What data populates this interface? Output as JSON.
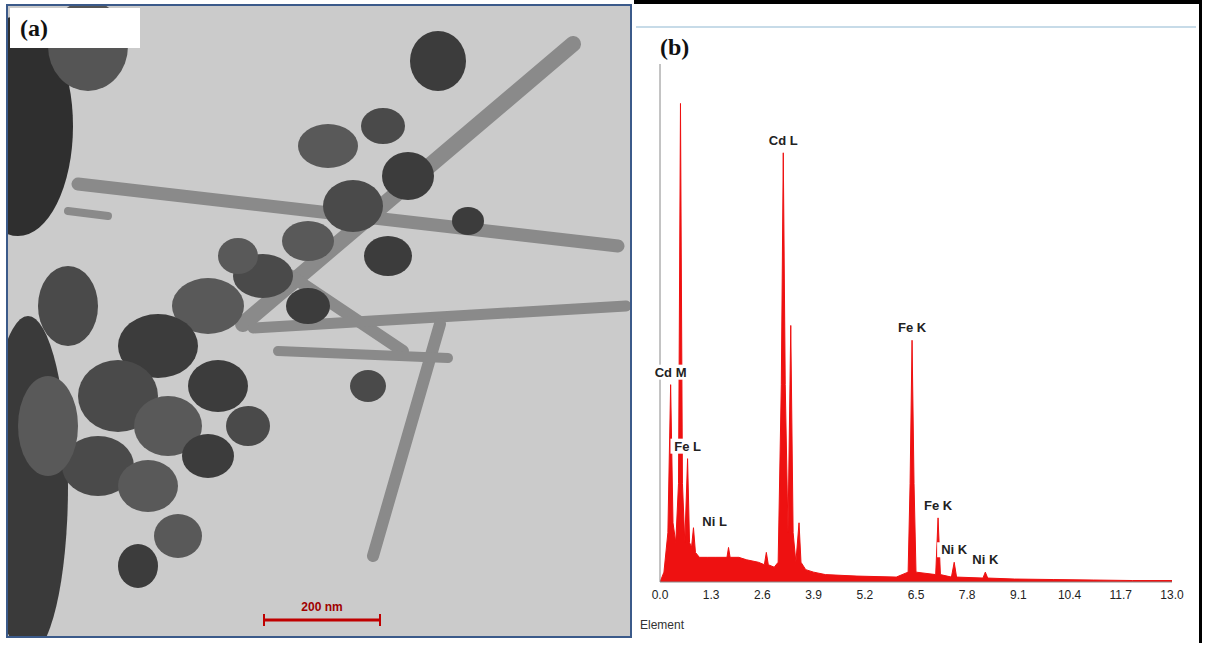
{
  "panel_a": {
    "label": "(a)",
    "scale_bar": "200 nm"
  },
  "chart_data": {
    "panel_label": "(b)",
    "type": "area",
    "xlabel": "Element",
    "color": "#ee1111",
    "tick_labels": "x",
    "grid": false,
    "xlim": [
      0,
      13
    ],
    "xticks": [
      {
        "value": 0,
        "label": "0.0"
      },
      1.3,
      2.6,
      3.9,
      5.2,
      6.5,
      7.8,
      9.1,
      10.4,
      11.7,
      {
        "value": 13,
        "label": "13.0"
      }
    ],
    "ylim": [
      0,
      105
    ],
    "x": [
      0,
      0.1,
      0.2,
      0.27,
      0.33,
      0.4,
      0.47,
      0.52,
      0.57,
      0.63,
      0.7,
      0.75,
      0.8,
      0.85,
      0.9,
      1.0,
      1.2,
      1.4,
      1.6,
      1.7,
      1.74,
      1.78,
      2.0,
      2.2,
      2.5,
      2.65,
      2.7,
      2.75,
      2.9,
      3.0,
      3.08,
      3.13,
      3.18,
      3.25,
      3.32,
      3.38,
      3.45,
      3.53,
      3.58,
      3.7,
      3.9,
      4.2,
      5.0,
      6.0,
      6.3,
      6.35,
      6.4,
      6.45,
      6.5,
      7.0,
      7.06,
      7.12,
      7.4,
      7.47,
      7.53,
      8.2,
      8.26,
      8.32,
      9,
      10,
      11,
      12,
      13
    ],
    "values": [
      0,
      2,
      10,
      40,
      12,
      8,
      20,
      97,
      20,
      8,
      25,
      8,
      7,
      11,
      6,
      5,
      5,
      5,
      5,
      5,
      7,
      5,
      5,
      4.5,
      4,
      3.5,
      6,
      3.5,
      3,
      4,
      40,
      87,
      40,
      10,
      52,
      10,
      4,
      12,
      4,
      2.5,
      2,
      1.5,
      1.2,
      1,
      2,
      20,
      49,
      20,
      2,
      1.5,
      13,
      1.5,
      1,
      4,
      1,
      0.8,
      2,
      0.8,
      0.6,
      0.5,
      0.4,
      0.3,
      0.3
    ],
    "annotations": [
      {
        "text": "Cd M",
        "x": 0.27,
        "y": 40
      },
      {
        "text": "Fe L",
        "x": 0.7,
        "y": 25
      },
      {
        "text": "Ni L",
        "x": 0.85,
        "y": 11
      },
      {
        "text": "Cd L",
        "x": 3.13,
        "y": 87
      },
      {
        "text": "Fe K",
        "x": 6.4,
        "y": 49
      },
      {
        "text": "Fe K",
        "x": 7.06,
        "y": 13
      },
      {
        "text": "Ni K",
        "x": 7.47,
        "y": 4
      },
      {
        "text": "Ni K",
        "x": 8.26,
        "y": 2
      }
    ]
  }
}
